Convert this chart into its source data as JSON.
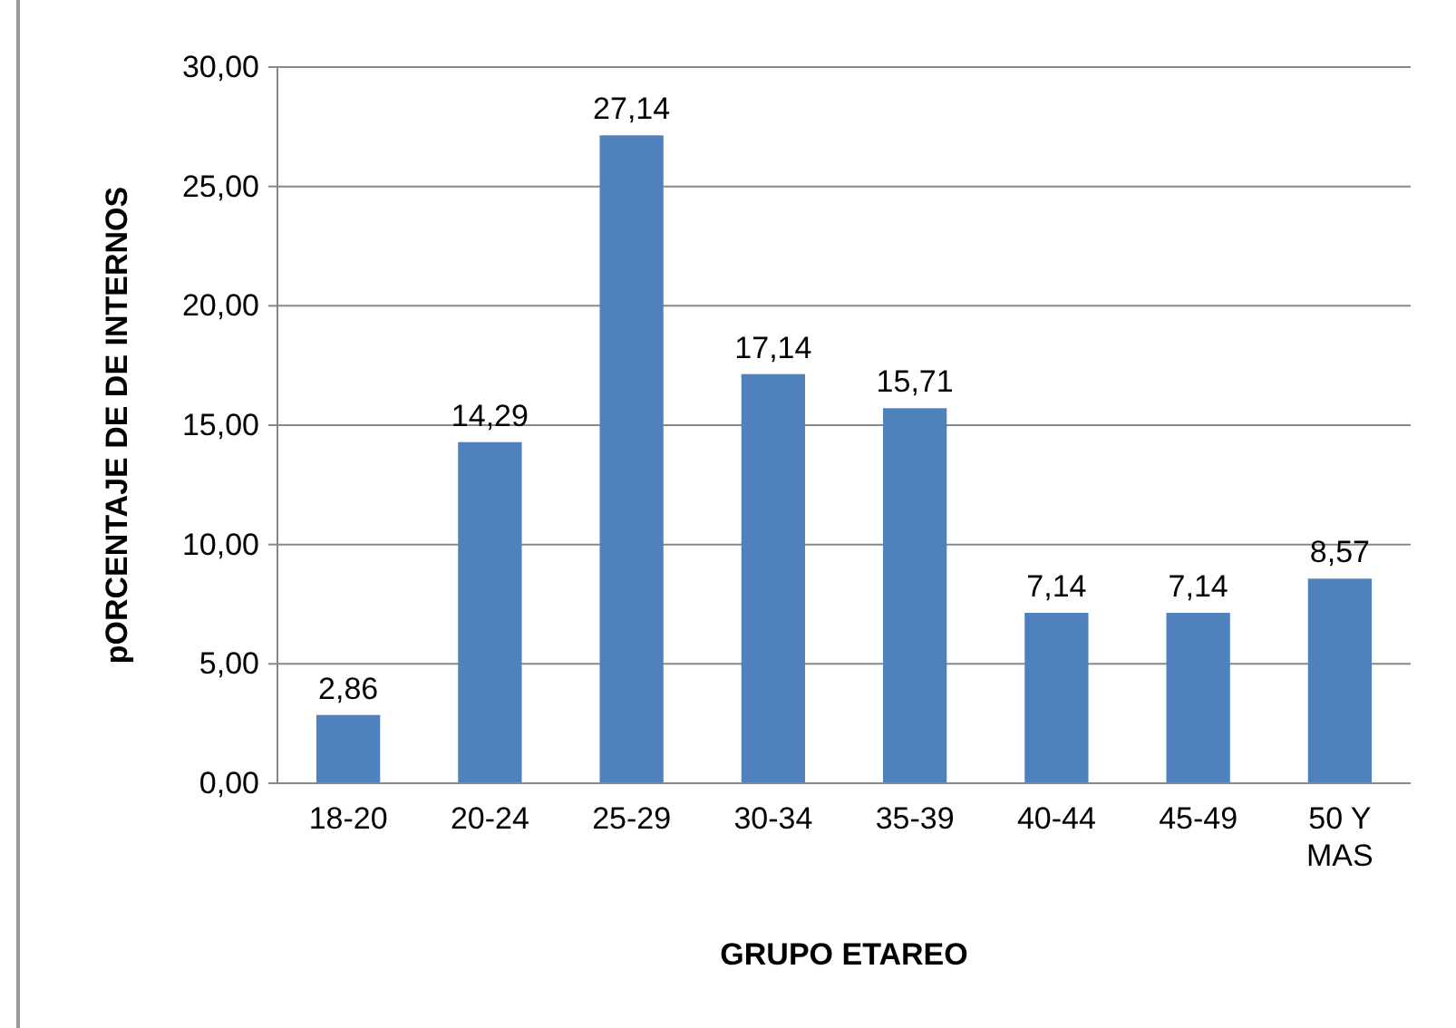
{
  "chart_data": {
    "type": "bar",
    "xlabel": "GRUPO ETAREO",
    "ylabel": "pORCENTAJE DE DE INTERNOS",
    "categories": [
      "18-20",
      "20-24",
      "25-29",
      "30-34",
      "35-39",
      "40-44",
      "45-49",
      "50 Y MAS"
    ],
    "values": [
      2.86,
      14.29,
      27.14,
      17.14,
      15.71,
      7.14,
      7.14,
      8.57
    ],
    "value_labels": [
      "2,86",
      "14,29",
      "27,14",
      "17,14",
      "15,71",
      "7,14",
      "7,14",
      "8,57"
    ],
    "color": "#4f81bd",
    "ylim": [
      0,
      30
    ],
    "yticks": [
      {
        "value": 0,
        "label": "0,00"
      },
      {
        "value": 5,
        "label": "5,00"
      },
      {
        "value": 10,
        "label": "10,00"
      },
      {
        "value": 15,
        "label": "15,00"
      },
      {
        "value": 20,
        "label": "20,00"
      },
      {
        "value": 25,
        "label": "25,00"
      },
      {
        "value": 30,
        "label": "30,00"
      }
    ],
    "grid": "y"
  }
}
